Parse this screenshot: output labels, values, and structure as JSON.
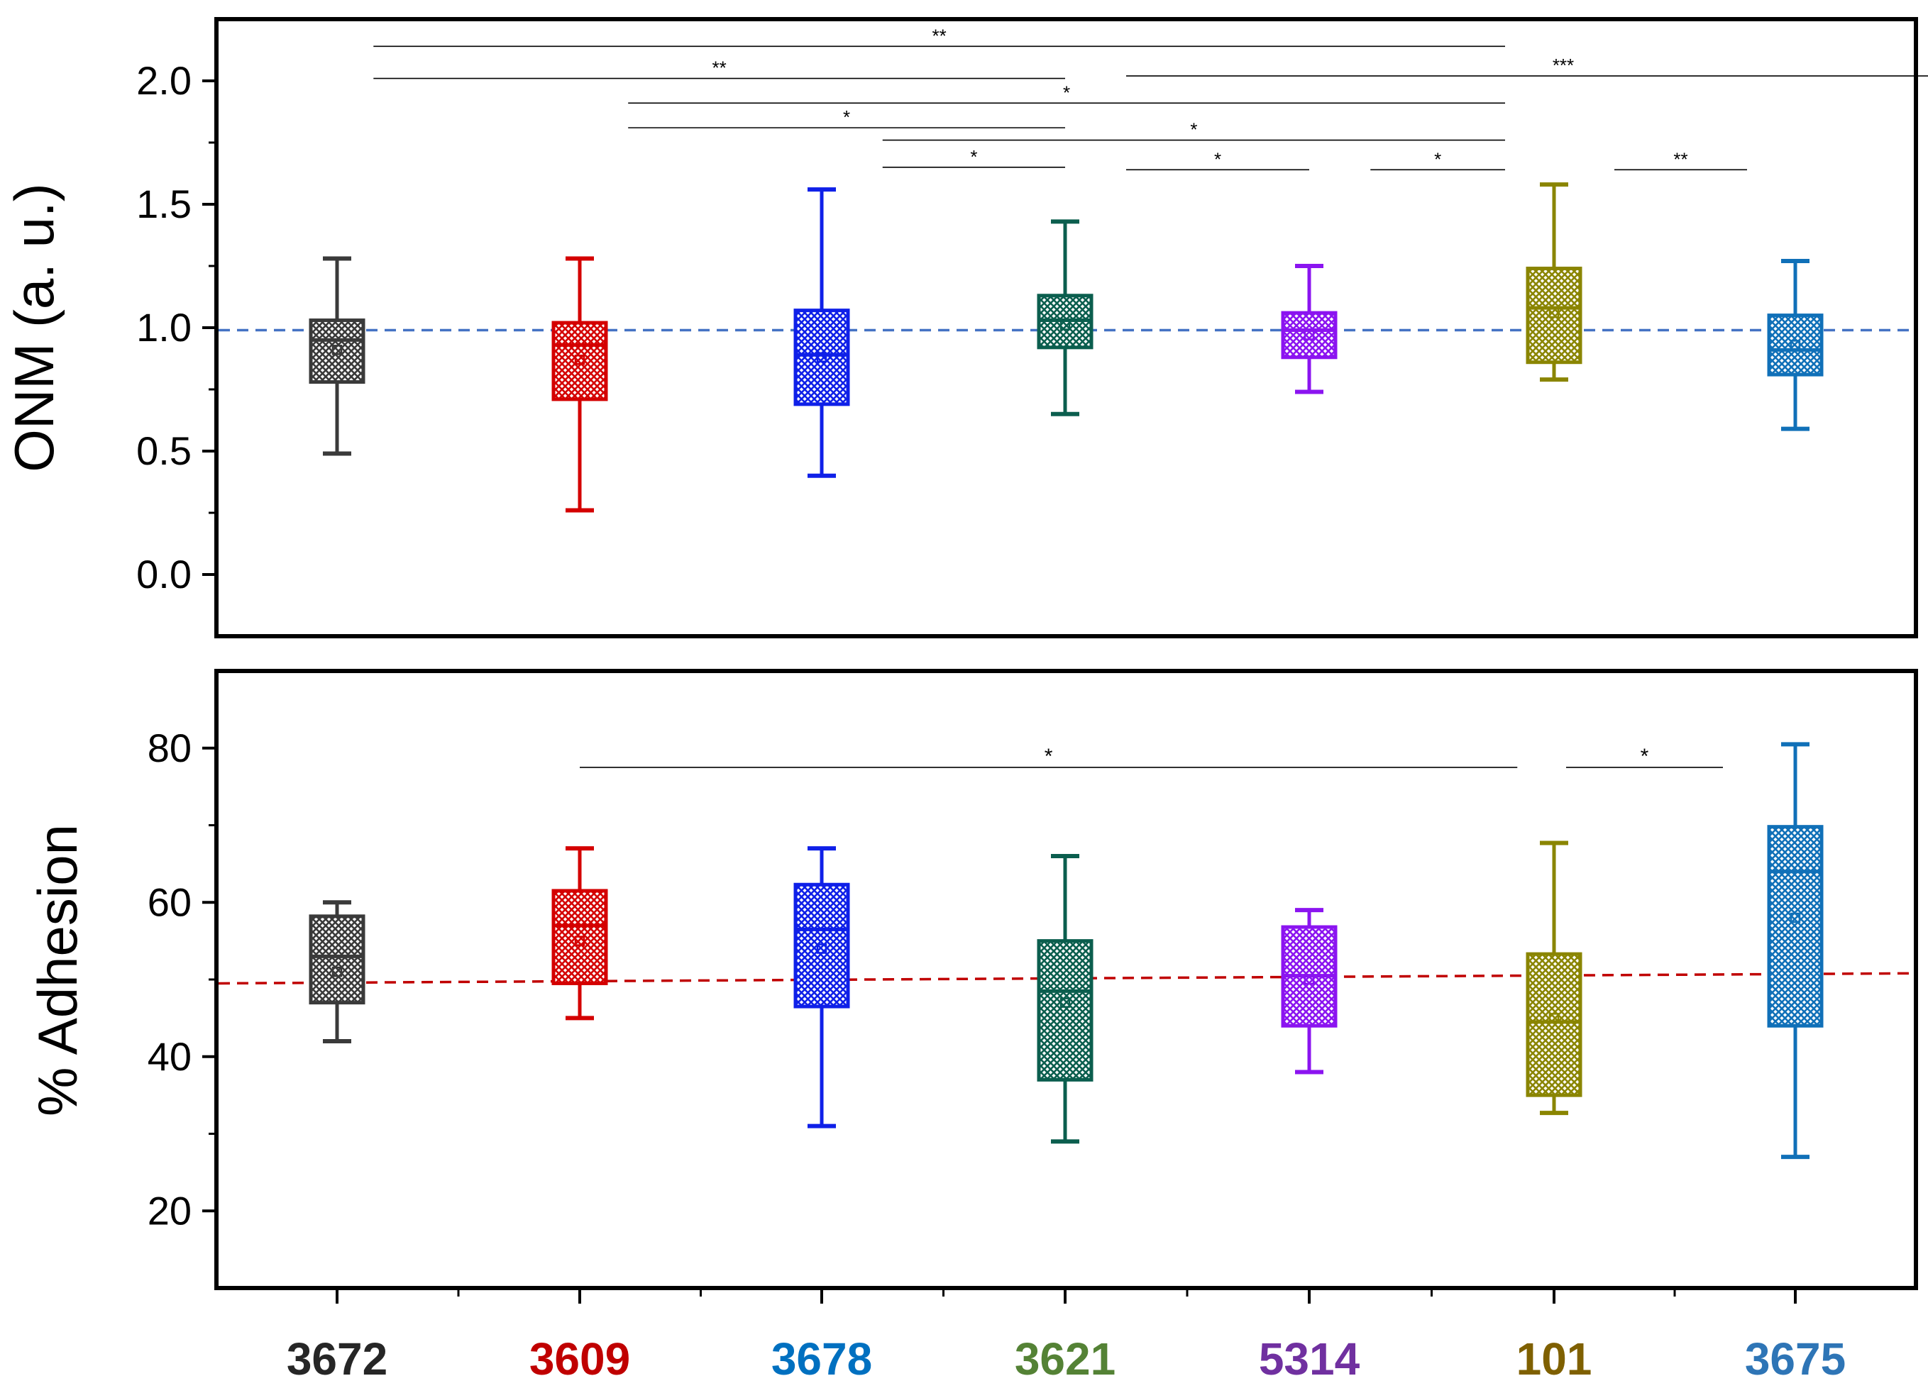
{
  "chart_data": [
    {
      "type": "box",
      "title": "",
      "xlabel": "",
      "ylabel": "ONM (a. u.)",
      "ylim": [
        -0.25,
        2.25
      ],
      "yticks": [
        0.0,
        0.5,
        1.0,
        1.5,
        2.0
      ],
      "ytick_labels": [
        "0.0",
        "0.5",
        "1.0",
        "1.5",
        "2.0"
      ],
      "reference_line": {
        "y_start": 0.99,
        "y_end": 0.99,
        "color": "#4472c4",
        "style": "dashed"
      },
      "categories": [
        "3672",
        "3609",
        "3678",
        "3621",
        "5314",
        "101",
        "3675"
      ],
      "boxes": [
        {
          "min": 0.49,
          "q1": 0.78,
          "median": 0.95,
          "mean": 0.91,
          "q3": 1.03,
          "max": 1.28
        },
        {
          "min": 0.26,
          "q1": 0.71,
          "median": 0.93,
          "mean": 0.87,
          "q3": 1.02,
          "max": 1.28
        },
        {
          "min": 0.4,
          "q1": 0.69,
          "median": 0.89,
          "mean": 0.88,
          "q3": 1.07,
          "max": 1.56
        },
        {
          "min": 0.65,
          "q1": 0.92,
          "median": 1.03,
          "mean": 1.01,
          "q3": 1.13,
          "max": 1.43
        },
        {
          "min": 0.74,
          "q1": 0.88,
          "median": 0.99,
          "mean": 0.97,
          "q3": 1.06,
          "max": 1.25
        },
        {
          "min": 0.79,
          "q1": 0.86,
          "median": 1.08,
          "mean": 1.06,
          "q3": 1.24,
          "max": 1.58
        },
        {
          "min": 0.59,
          "q1": 0.81,
          "median": 0.91,
          "mean": 0.93,
          "q3": 1.05,
          "max": 1.27
        }
      ],
      "significance": [
        {
          "from": 0.15,
          "to": 4.8,
          "y": 2.14,
          "label": "**"
        },
        {
          "from": 0.15,
          "to": 3.0,
          "y": 2.01,
          "label": "**"
        },
        {
          "from": 3.25,
          "to": 6.85,
          "y": 2.02,
          "label": "***"
        },
        {
          "from": 1.2,
          "to": 4.8,
          "y": 1.91,
          "label": "*"
        },
        {
          "from": 1.2,
          "to": 3.0,
          "y": 1.81,
          "label": "*"
        },
        {
          "from": 2.25,
          "to": 4.8,
          "y": 1.76,
          "label": "*"
        },
        {
          "from": 2.25,
          "to": 3.0,
          "y": 1.65,
          "label": "*"
        },
        {
          "from": 3.25,
          "to": 4.0,
          "y": 1.64,
          "label": "*"
        },
        {
          "from": 4.25,
          "to": 4.8,
          "y": 1.64,
          "label": "*"
        },
        {
          "from": 5.25,
          "to": 5.8,
          "y": 1.64,
          "label": "**"
        }
      ]
    },
    {
      "type": "box",
      "title": "",
      "xlabel": "",
      "ylabel": "% Adhesion",
      "ylim": [
        10,
        90
      ],
      "yticks": [
        20,
        40,
        60,
        80
      ],
      "ytick_labels": [
        "20",
        "40",
        "60",
        "80"
      ],
      "reference_line": {
        "y_start": 49.5,
        "y_end": 50.8,
        "color": "#c00000",
        "style": "dashed"
      },
      "categories": [
        "3672",
        "3609",
        "3678",
        "3621",
        "5314",
        "101",
        "3675"
      ],
      "boxes": [
        {
          "min": 42.0,
          "q1": 47.0,
          "median": 53.0,
          "mean": 51.0,
          "q3": 58.2,
          "max": 60.0
        },
        {
          "min": 45.0,
          "q1": 49.5,
          "median": 57.0,
          "mean": 55.0,
          "q3": 61.5,
          "max": 67.0
        },
        {
          "min": 31.0,
          "q1": 46.5,
          "median": 56.5,
          "mean": 54.0,
          "q3": 62.3,
          "max": 67.0
        },
        {
          "min": 29.0,
          "q1": 37.0,
          "median": 48.5,
          "mean": 47.0,
          "q3": 55.0,
          "max": 66.0
        },
        {
          "min": 38.0,
          "q1": 44.0,
          "median": 50.5,
          "mean": 50.0,
          "q3": 56.8,
          "max": 59.0
        },
        {
          "min": 32.7,
          "q1": 35.0,
          "median": 44.5,
          "mean": 45.0,
          "q3": 53.3,
          "max": 67.7
        },
        {
          "min": 27.0,
          "q1": 44.0,
          "median": 64.0,
          "mean": 58.0,
          "q3": 69.8,
          "max": 80.5
        }
      ],
      "significance": [
        {
          "from": 1.0,
          "to": 4.85,
          "y": 77.5,
          "label": "*"
        },
        {
          "from": 5.05,
          "to": 5.7,
          "y": 77.5,
          "label": "*"
        }
      ]
    }
  ],
  "categories": [
    {
      "label": "3672",
      "color": "#3a3a3a",
      "label_color": "#262626"
    },
    {
      "label": "3609",
      "color": "#d40000",
      "label_color": "#c00000"
    },
    {
      "label": "3678",
      "color": "#0f20e8",
      "label_color": "#0070c0"
    },
    {
      "label": "3621",
      "color": "#0b5e4e",
      "label_color": "#548235"
    },
    {
      "label": "5314",
      "color": "#8b14f0",
      "label_color": "#7030a0"
    },
    {
      "label": "101",
      "color": "#8a8500",
      "label_color": "#7f6000"
    },
    {
      "label": "3675",
      "color": "#1070b8",
      "label_color": "#2e75b6"
    }
  ]
}
